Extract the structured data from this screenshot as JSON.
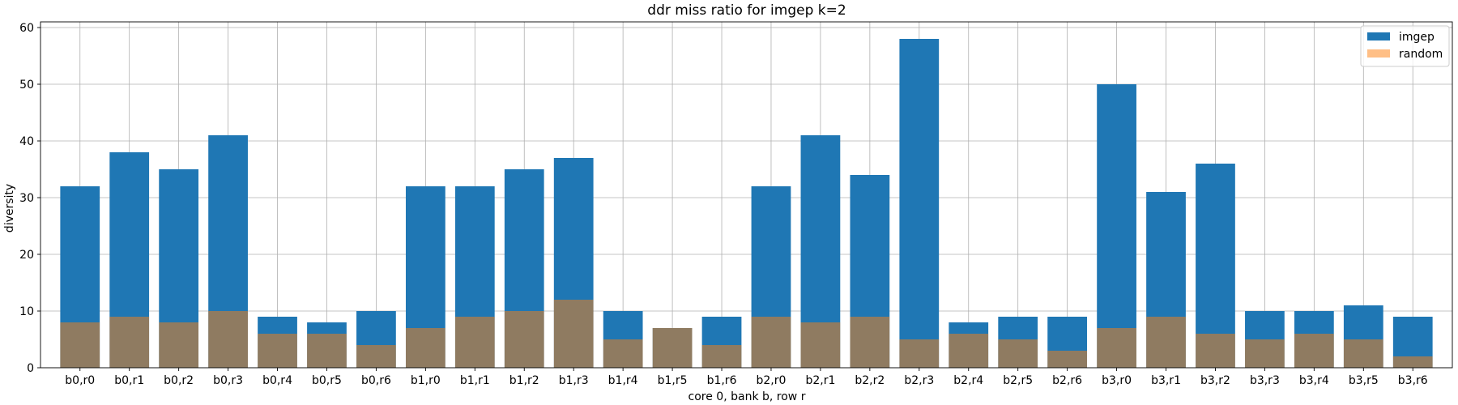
{
  "chart_data": {
    "type": "bar",
    "title": "ddr miss ratio for imgep k=2",
    "xlabel": "core 0, bank b, row r",
    "ylabel": "diversity",
    "ylim": [
      0,
      61
    ],
    "yticks": [
      0,
      10,
      20,
      30,
      40,
      50,
      60
    ],
    "grid": true,
    "legend_position": "top-right",
    "categories": [
      "b0,r0",
      "b0,r1",
      "b0,r2",
      "b0,r3",
      "b0,r4",
      "b0,r5",
      "b0,r6",
      "b1,r0",
      "b1,r1",
      "b1,r2",
      "b1,r3",
      "b1,r4",
      "b1,r5",
      "b1,r6",
      "b2,r0",
      "b2,r1",
      "b2,r2",
      "b2,r3",
      "b2,r4",
      "b2,r5",
      "b2,r6",
      "b3,r0",
      "b3,r1",
      "b3,r2",
      "b3,r3",
      "b3,r4",
      "b3,r5",
      "b3,r6"
    ],
    "series": [
      {
        "name": "imgep",
        "color": "#1f77b4",
        "opacity": 1,
        "values": [
          32,
          38,
          35,
          41,
          9,
          8,
          10,
          32,
          32,
          35,
          37,
          10,
          7,
          9,
          32,
          41,
          34,
          58,
          8,
          9,
          9,
          50,
          31,
          36,
          10,
          10,
          11,
          9
        ]
      },
      {
        "name": "random",
        "color": "#ff7f0e",
        "opacity": 0.5,
        "values": [
          8,
          9,
          8,
          10,
          6,
          6,
          4,
          7,
          9,
          10,
          12,
          5,
          7,
          4,
          9,
          8,
          9,
          5,
          6,
          5,
          3,
          7,
          9,
          6,
          5,
          6,
          5,
          2
        ]
      }
    ]
  }
}
